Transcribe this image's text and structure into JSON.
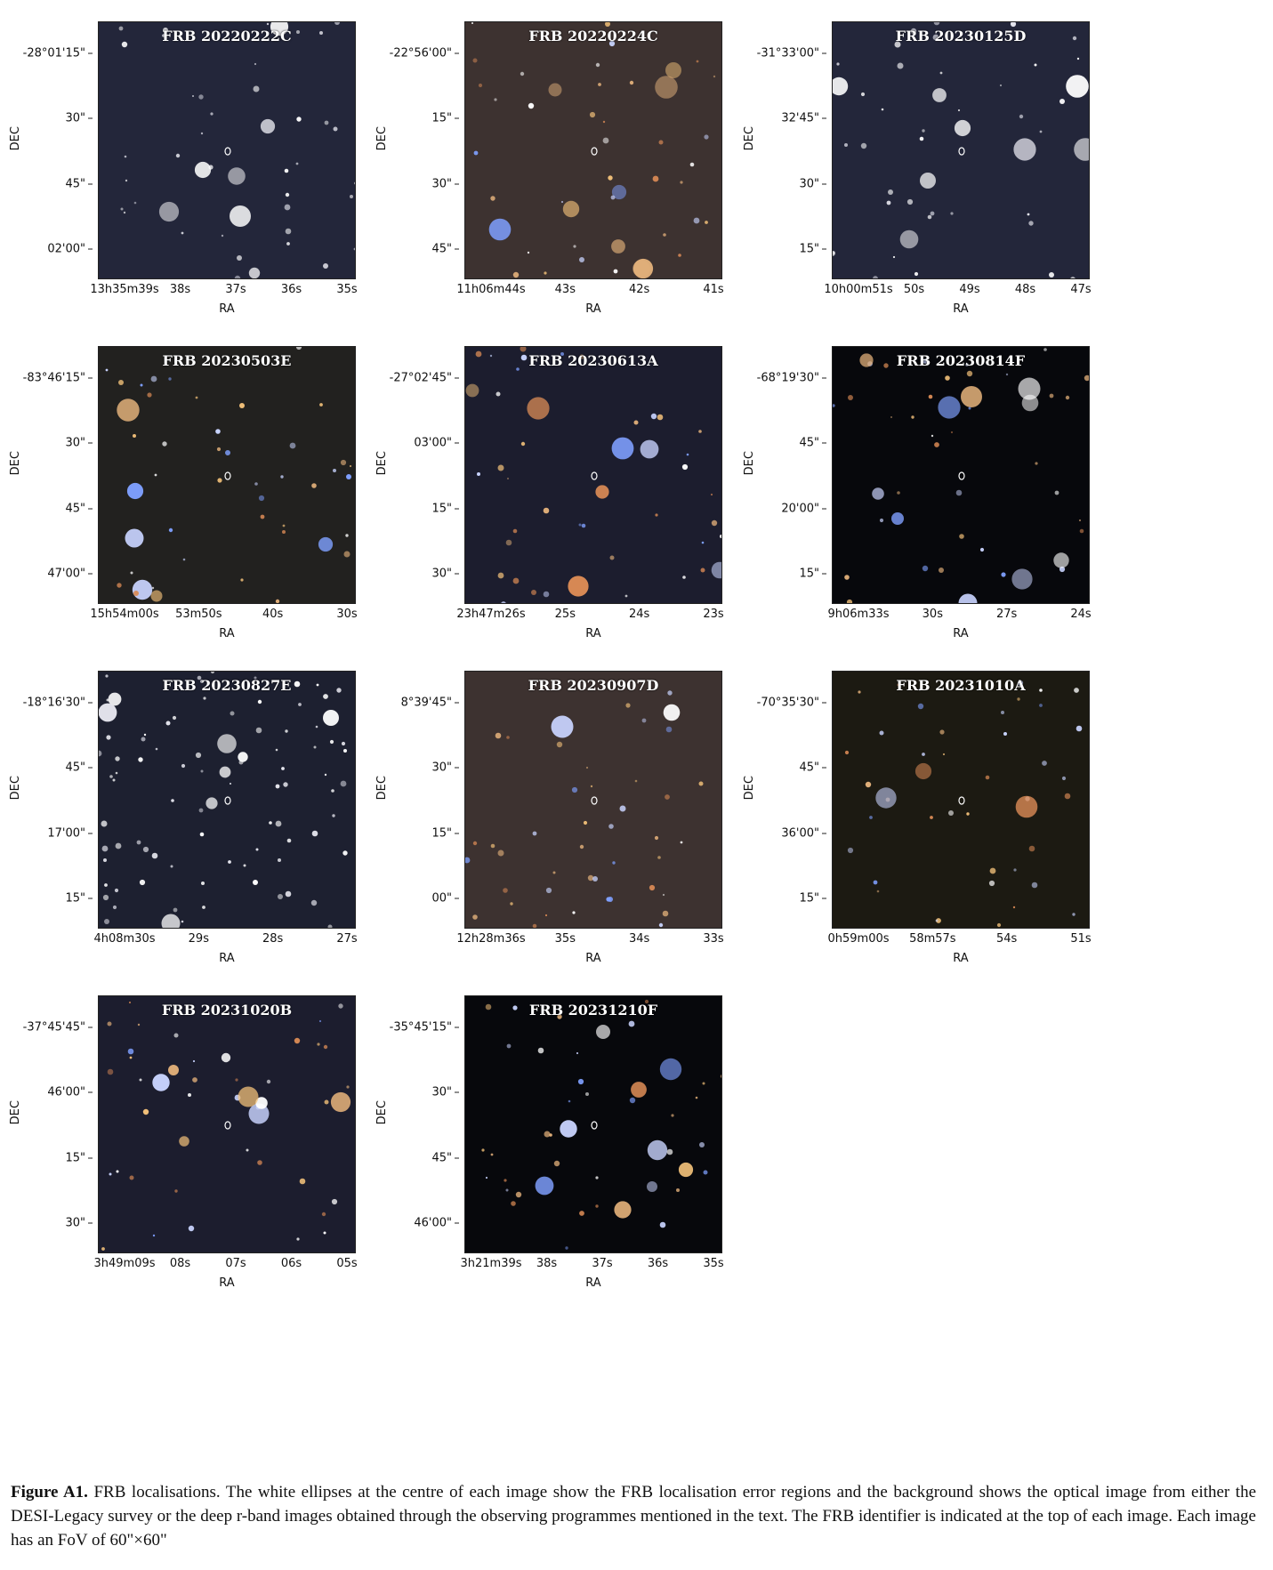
{
  "axis_labels": {
    "x": "RA",
    "y": "DEC"
  },
  "panels": [
    {
      "id": "FRB 20220222C",
      "theme": "grey",
      "yticks": [
        "-28°01'15\"",
        "30\"",
        "45\"",
        "02'00\""
      ],
      "xticks": [
        "13h35m39s",
        "38s",
        "37s",
        "36s",
        "35s"
      ]
    },
    {
      "id": "FRB 20220224C",
      "theme": "brown",
      "yticks": [
        "-22°56'00\"",
        "15\"",
        "30\"",
        "45\""
      ],
      "xticks": [
        "11h06m44s",
        "43s",
        "42s",
        "41s"
      ]
    },
    {
      "id": "FRB 20230125D",
      "theme": "grey",
      "yticks": [
        "-31°33'00\"",
        "32'45\"",
        "30\"",
        "15\""
      ],
      "xticks": [
        "10h00m51s",
        "50s",
        "49s",
        "48s",
        "47s"
      ]
    },
    {
      "id": "FRB 20230503E",
      "theme": "dark",
      "yticks": [
        "-83°46'15\"",
        "30\"",
        "45\"",
        "47'00\""
      ],
      "xticks": [
        "15h54m00s",
        "53m50s",
        "40s",
        "30s"
      ]
    },
    {
      "id": "FRB 20230613A",
      "theme": "navy",
      "yticks": [
        "-27°02'45\"",
        "03'00\"",
        "15\"",
        "30\""
      ],
      "xticks": [
        "23h47m26s",
        "25s",
        "24s",
        "23s"
      ]
    },
    {
      "id": "FRB 20230814F",
      "theme": "black",
      "yticks": [
        "-68°19'30\"",
        "45\"",
        "20'00\"",
        "15\""
      ],
      "xticks": [
        "9h06m33s",
        "30s",
        "27s",
        "24s"
      ]
    },
    {
      "id": "FRB 20230827E",
      "theme": "noise",
      "yticks": [
        "-18°16'30\"",
        "45\"",
        "17'00\"",
        "15\""
      ],
      "xticks": [
        "4h08m30s",
        "29s",
        "28s",
        "27s"
      ]
    },
    {
      "id": "FRB 20230907D",
      "theme": "brown",
      "yticks": [
        "8°39'45\"",
        "30\"",
        "15\"",
        "00\""
      ],
      "xticks": [
        "12h28m36s",
        "35s",
        "34s",
        "33s"
      ]
    },
    {
      "id": "FRB 20231010A",
      "theme": "olive",
      "yticks": [
        "-70°35'30\"",
        "45\"",
        "36'00\"",
        "15\""
      ],
      "xticks": [
        "0h59m00s",
        "58m57s",
        "54s",
        "51s"
      ]
    },
    {
      "id": "FRB 20231020B",
      "theme": "navy",
      "yticks": [
        "-37°45'45\"",
        "46'00\"",
        "15\"",
        "30\""
      ],
      "xticks": [
        "3h49m09s",
        "08s",
        "07s",
        "06s",
        "05s"
      ]
    },
    {
      "id": "FRB 20231210F",
      "theme": "black",
      "yticks": [
        "-35°45'15\"",
        "30\"",
        "45\"",
        "46'00\""
      ],
      "xticks": [
        "3h21m39s",
        "38s",
        "37s",
        "36s",
        "35s"
      ]
    }
  ],
  "caption": {
    "label": "Figure A1.",
    "text": "FRB localisations. The white ellipses at the centre of each image show the FRB localisation error regions and the background shows the optical image from either the DESI-Legacy survey or the deep r-band images obtained through the observing programmes mentioned in the text. The FRB identifier is indicated at the top of each image. Each image has an FoV of 60\"×60\""
  },
  "colors": {
    "grey": "#23263a",
    "brown": "#3d3230",
    "dark": "#22211f",
    "navy": "#1c1d2e",
    "black": "#07080c",
    "noise": "#1d2030",
    "olive": "#1c1a12"
  }
}
